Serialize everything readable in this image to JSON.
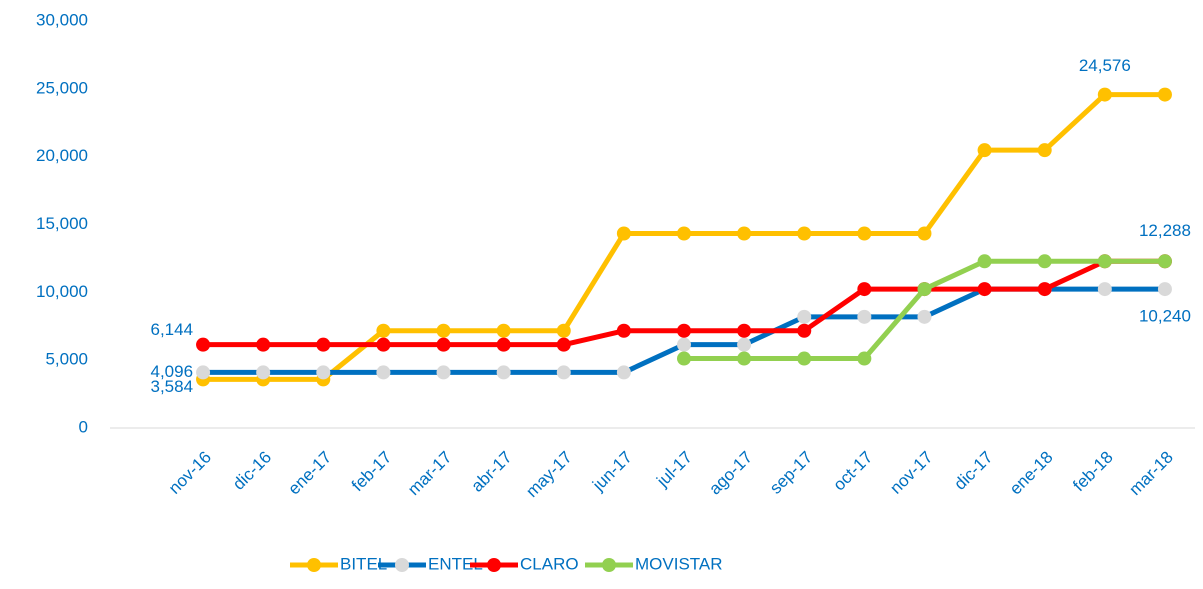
{
  "chart_data": {
    "type": "line",
    "categories": [
      "nov-16",
      "dic-16",
      "ene-17",
      "feb-17",
      "mar-17",
      "abr-17",
      "may-17",
      "jun-17",
      "jul-17",
      "ago-17",
      "sep-17",
      "oct-17",
      "nov-17",
      "dic-17",
      "ene-18",
      "feb-18",
      "mar-18"
    ],
    "series": [
      {
        "name": "BITEL",
        "color": "#ffc000",
        "marker_color": "#ffc000",
        "values": [
          3584,
          3584,
          3584,
          7168,
          7168,
          7168,
          7168,
          14336,
          14336,
          14336,
          14336,
          14336,
          14336,
          20480,
          20480,
          24576,
          24576
        ],
        "value_labels": [
          "3,584",
          null,
          null,
          null,
          null,
          null,
          null,
          null,
          null,
          null,
          null,
          null,
          null,
          null,
          null,
          "24,576",
          null
        ]
      },
      {
        "name": "ENTEL",
        "color": "#0070c0",
        "marker_color": "#d9d9d9",
        "values": [
          4096,
          4096,
          4096,
          4096,
          4096,
          4096,
          4096,
          4096,
          6144,
          6144,
          8192,
          8192,
          8192,
          10240,
          10240,
          10240,
          10240
        ],
        "value_labels": [
          "4,096",
          null,
          null,
          null,
          null,
          null,
          null,
          null,
          null,
          null,
          null,
          null,
          null,
          null,
          null,
          null,
          "10,240"
        ]
      },
      {
        "name": "CLARO",
        "color": "#ff0000",
        "marker_color": "#ff0000",
        "values": [
          6144,
          6144,
          6144,
          6144,
          6144,
          6144,
          6144,
          7168,
          7168,
          7168,
          7168,
          10240,
          10240,
          10240,
          10240,
          12288,
          12288
        ],
        "value_labels": [
          "6,144",
          null,
          null,
          null,
          null,
          null,
          null,
          null,
          null,
          null,
          null,
          null,
          null,
          null,
          null,
          null,
          null
        ]
      },
      {
        "name": "MOVISTAR",
        "color": "#92d050",
        "marker_color": "#92d050",
        "values": [
          null,
          null,
          null,
          null,
          null,
          null,
          null,
          null,
          5120,
          5120,
          5120,
          5120,
          10240,
          12288,
          12288,
          12288,
          12288
        ],
        "value_labels": [
          null,
          null,
          null,
          null,
          null,
          null,
          null,
          null,
          null,
          null,
          null,
          null,
          null,
          null,
          null,
          null,
          "12,288"
        ]
      }
    ],
    "ylim": [
      0,
      30000
    ],
    "yticks": [
      0,
      {
        "value": 5000,
        "label": "5,000"
      },
      {
        "value": 10000,
        "label": "10,000"
      },
      {
        "value": 15000,
        "label": "15,000"
      },
      {
        "value": 20000,
        "label": "20,000"
      },
      {
        "value": 25000,
        "label": "25,000"
      },
      {
        "value": 30000,
        "label": "30,000"
      }
    ],
    "grid": false,
    "legend": "bottom"
  }
}
